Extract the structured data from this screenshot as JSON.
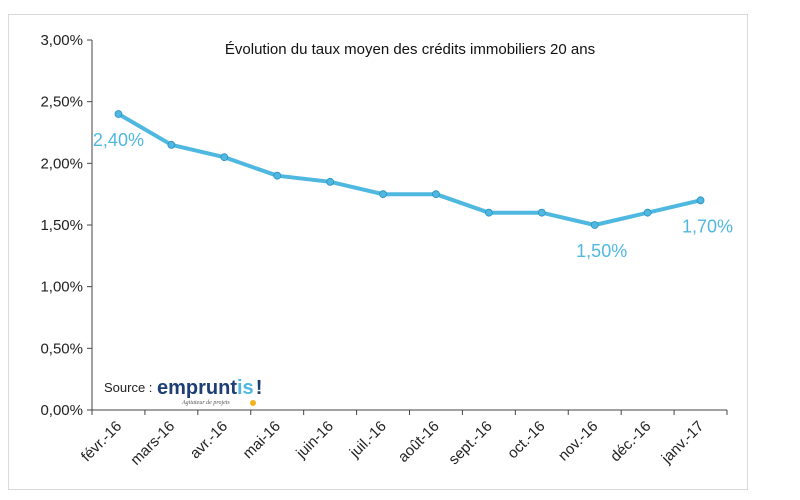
{
  "colors": {
    "series": "#4fb8e0",
    "axis": "#444444",
    "text": "#222222",
    "logo_dark": "#1d3f73",
    "logo_accent": "#4fb8e0",
    "logo_dot": "#f2b21b"
  },
  "source": {
    "label": "Source :",
    "logo_main": "emprunt",
    "logo_accent": "is",
    "logo_bang": "!",
    "logo_tagline": "Agitateur de projets"
  },
  "chart_data": {
    "type": "line",
    "title": "Évolution du taux moyen des crédits immobiliers 20 ans",
    "xlabel": "",
    "ylabel": "",
    "categories": [
      "févr.-16",
      "mars-16",
      "avr.-16",
      "mai-16",
      "juin-16",
      "juil.-16",
      "août-16",
      "sept.-16",
      "oct.-16",
      "nov.-16",
      "déc.-16",
      "janv.-17"
    ],
    "series": [
      {
        "values": [
          2.4,
          2.15,
          2.05,
          1.9,
          1.85,
          1.75,
          1.75,
          1.6,
          1.6,
          1.5,
          1.6,
          1.7
        ]
      }
    ],
    "ylim": [
      0,
      3
    ],
    "yticks": [
      0,
      0.5,
      1,
      1.5,
      2,
      2.5,
      3
    ],
    "ytick_labels": [
      "0,00%",
      "0,50%",
      "1,00%",
      "1,50%",
      "2,00%",
      "2,50%",
      "3,00%"
    ],
    "data_labels": [
      {
        "index": 0,
        "text": "2,40%"
      },
      {
        "index": 9,
        "text": "1,50%"
      },
      {
        "index": 11,
        "text": "1,70%"
      }
    ],
    "grid": false,
    "legend": "none"
  }
}
